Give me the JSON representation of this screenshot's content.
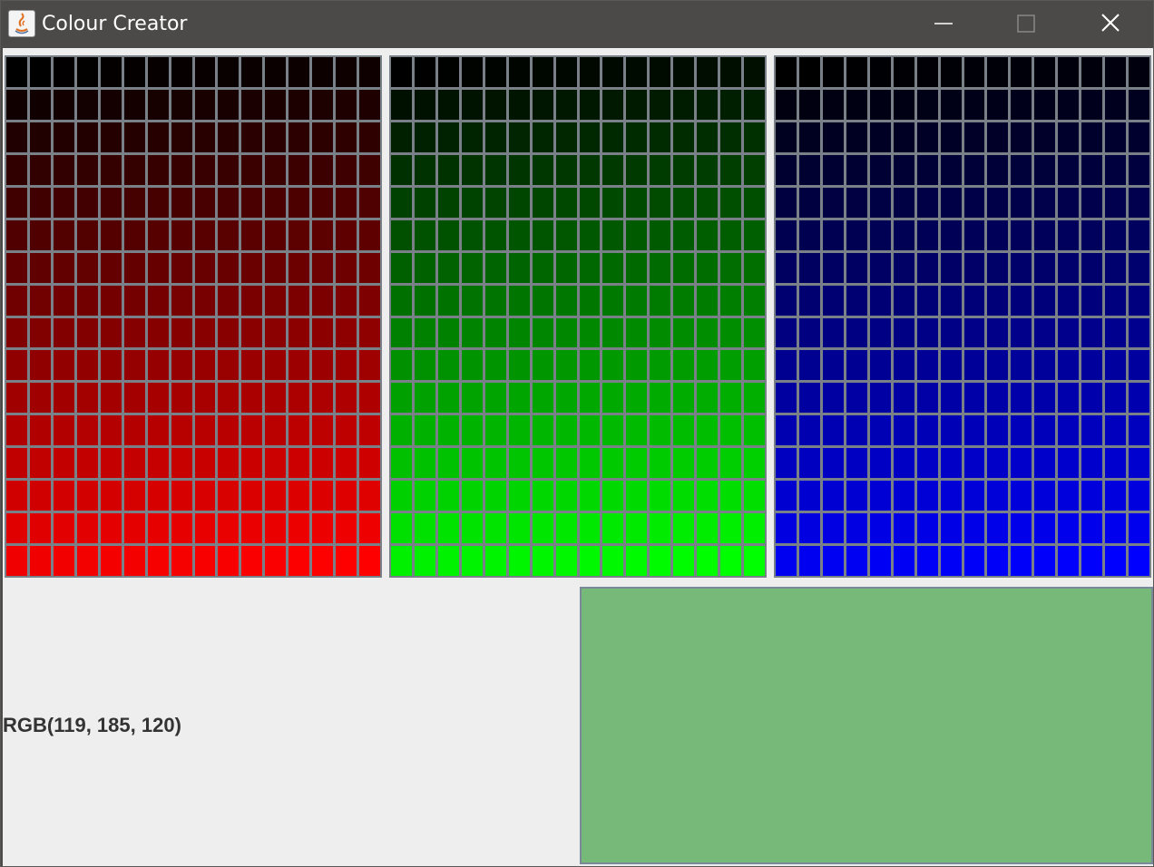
{
  "window": {
    "title": "Colour Creator",
    "controls": [
      "minimize-icon",
      "maximize-icon",
      "close-icon"
    ]
  },
  "grids": [
    {
      "name": "red",
      "channel": "R",
      "rows": 16,
      "cols": 16
    },
    {
      "name": "green",
      "channel": "G",
      "rows": 16,
      "cols": 16
    },
    {
      "name": "blue",
      "channel": "B",
      "rows": 16,
      "cols": 16
    }
  ],
  "selected": {
    "r": 119,
    "g": 185,
    "b": 120,
    "label": "RGB(119, 185, 120)",
    "swatch_color": "#77b978"
  },
  "colors": {
    "titlebar": "#4c4a48",
    "panel": "#eeeeee",
    "grid_line": "#7a8088"
  }
}
